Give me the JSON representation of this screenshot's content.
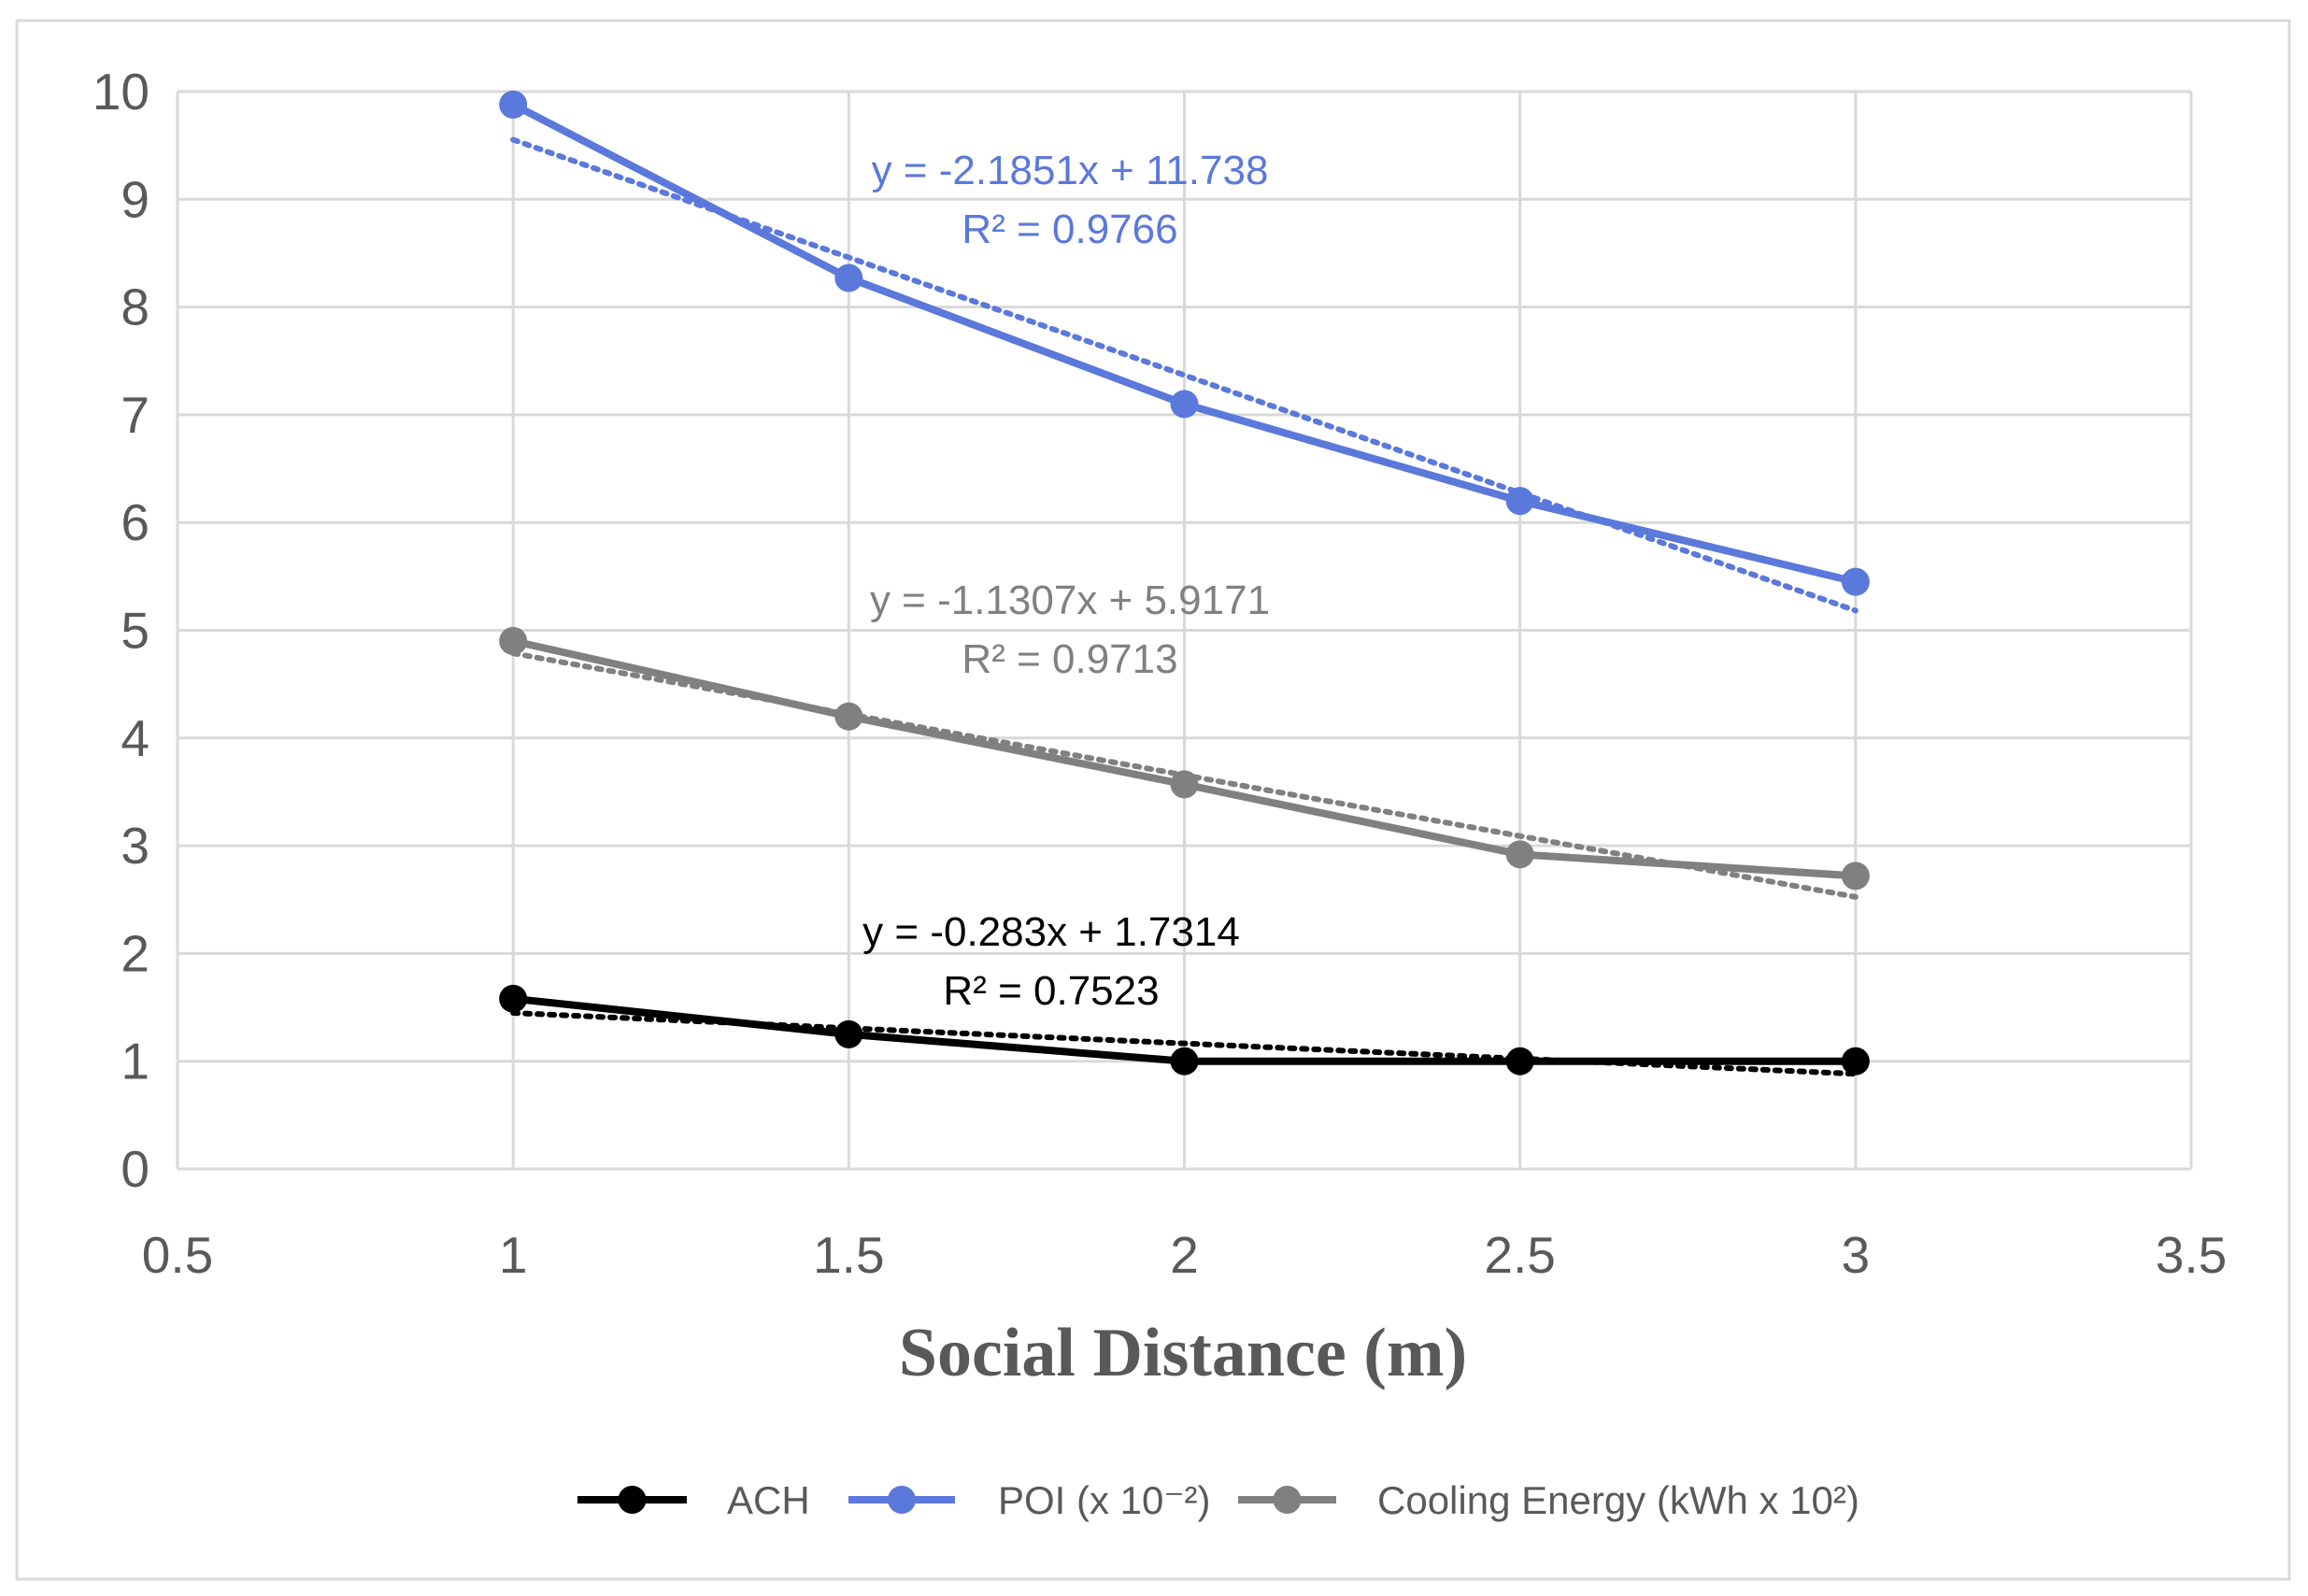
{
  "chart_data": {
    "type": "line",
    "xlabel": "Social Distance (m)",
    "ylabel": "",
    "xlim": [
      0.5,
      3.5
    ],
    "ylim": [
      0,
      10
    ],
    "x_ticks": [
      "0.5",
      "1",
      "1.5",
      "2",
      "2.5",
      "3",
      "3.5"
    ],
    "y_ticks": [
      "0",
      "1",
      "2",
      "3",
      "4",
      "5",
      "6",
      "7",
      "8",
      "9",
      "10"
    ],
    "grid": true,
    "legend_position": "bottom",
    "x": [
      1,
      1.5,
      2,
      2.5,
      3
    ],
    "series": [
      {
        "name": "ACH",
        "color": "#000000",
        "values": [
          1.58,
          1.25,
          1.0,
          1.0,
          1.0
        ],
        "trendline": {
          "slope": -0.283,
          "intercept": 1.7314,
          "equation": "y = -0.283x + 1.7314",
          "r2": "R² = 0.7523"
        }
      },
      {
        "name": "POI (x 10⁻²)",
        "color": "#5B78DB",
        "values": [
          9.88,
          8.27,
          7.1,
          6.2,
          5.45
        ],
        "trendline": {
          "slope": -2.1851,
          "intercept": 11.738,
          "equation": "y = -2.1851x + 11.738",
          "r2": "R² = 0.9766"
        }
      },
      {
        "name": "Cooling Energy (kWh x 10²)",
        "color": "#808080",
        "values": [
          4.9,
          4.2,
          3.57,
          2.92,
          2.72
        ],
        "trendline": {
          "slope": -1.1307,
          "intercept": 5.9171,
          "equation": "y = -1.1307x + 5.9171",
          "r2": "R² = 0.9713"
        }
      }
    ]
  }
}
